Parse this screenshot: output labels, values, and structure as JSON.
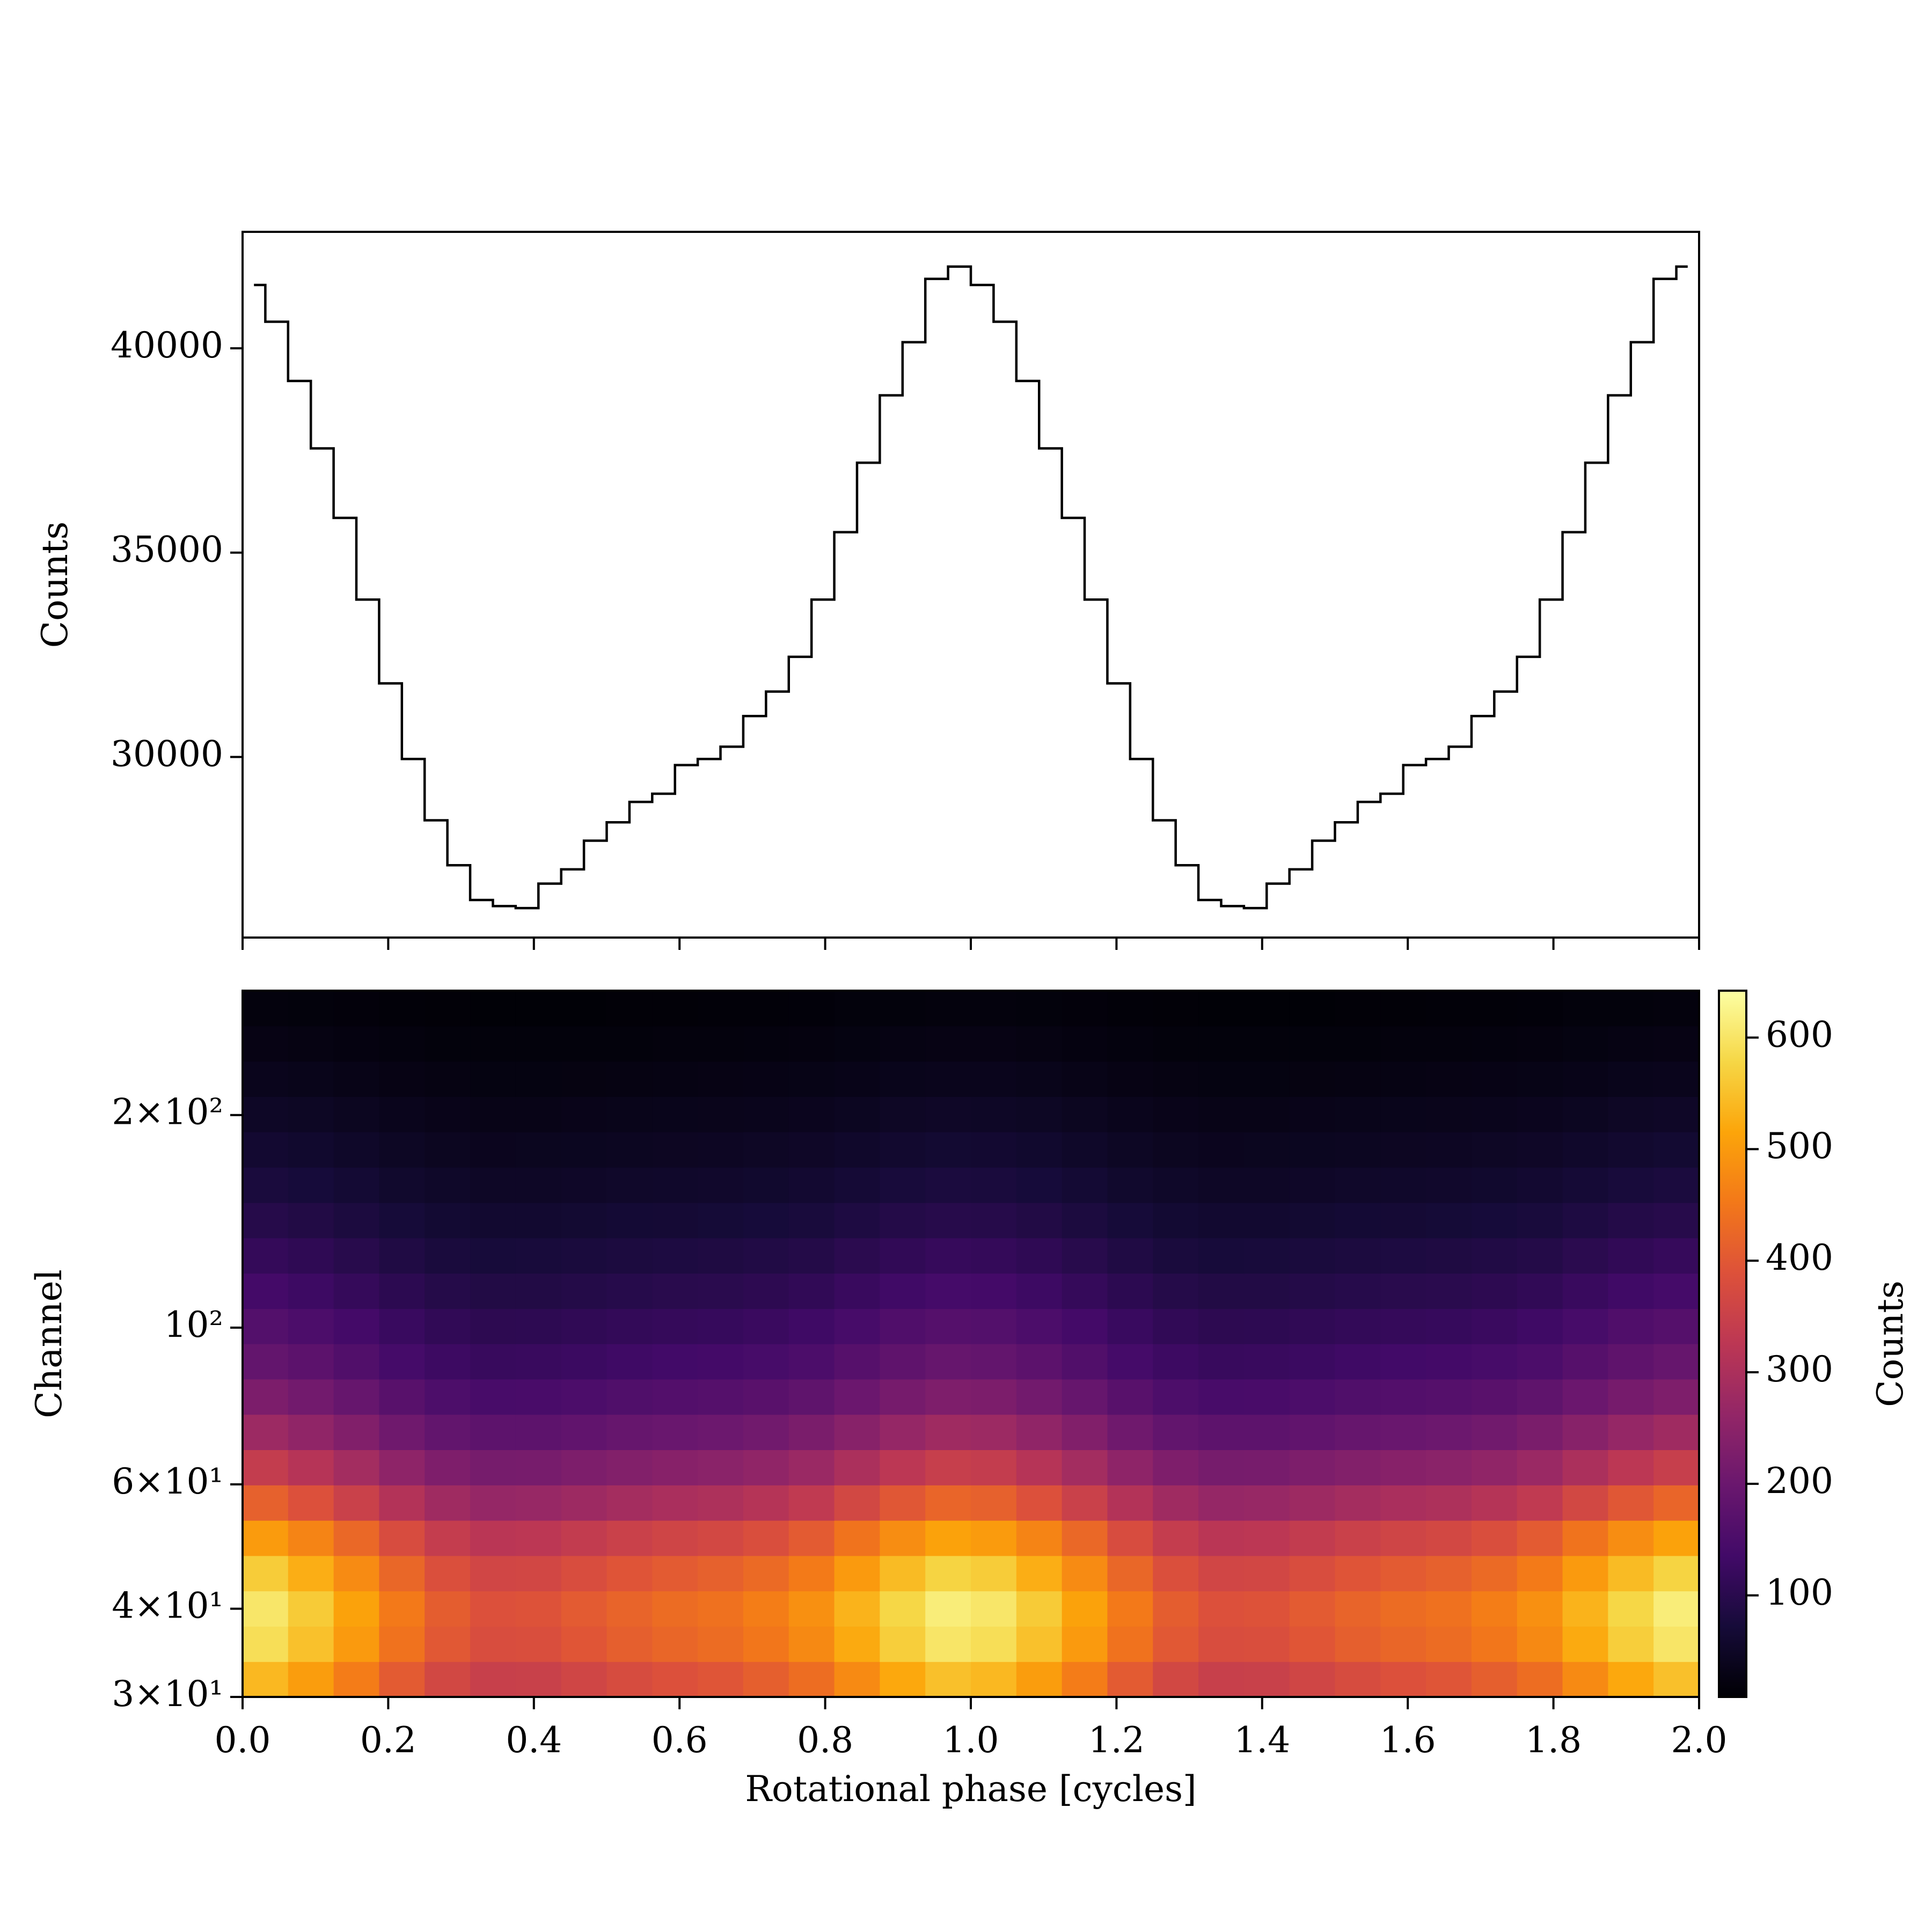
{
  "chart_data": [
    {
      "type": "step",
      "drawstyle": "steps-mid",
      "ylabel": "Counts",
      "color": "#000000",
      "x": [
        0.015625,
        0.046875,
        0.078125,
        0.109375,
        0.140625,
        0.171875,
        0.203125,
        0.234375,
        0.265625,
        0.296875,
        0.328125,
        0.359375,
        0.390625,
        0.421875,
        0.453125,
        0.484375,
        0.515625,
        0.546875,
        0.578125,
        0.609375,
        0.640625,
        0.671875,
        0.703125,
        0.734375,
        0.765625,
        0.796875,
        0.828125,
        0.859375,
        0.890625,
        0.921875,
        0.953125,
        0.984375,
        1.015625,
        1.046875,
        1.078125,
        1.109375,
        1.140625,
        1.171875,
        1.203125,
        1.234375,
        1.265625,
        1.296875,
        1.328125,
        1.359375,
        1.390625,
        1.421875,
        1.453125,
        1.484375,
        1.515625,
        1.546875,
        1.578125,
        1.609375,
        1.640625,
        1.671875,
        1.703125,
        1.734375,
        1.765625,
        1.796875,
        1.828125,
        1.859375,
        1.890625,
        1.921875,
        1.953125,
        1.984375
      ],
      "values": [
        41550,
        40650,
        39200,
        37550,
        35850,
        33850,
        31800,
        29950,
        28450,
        27350,
        26500,
        26350,
        26300,
        26900,
        27250,
        27950,
        28400,
        28900,
        29100,
        29800,
        29950,
        30250,
        31000,
        31600,
        32450,
        33850,
        35500,
        37200,
        38850,
        40150,
        41700,
        42000,
        41550,
        40650,
        39200,
        37550,
        35850,
        33850,
        31800,
        29950,
        28450,
        27350,
        26500,
        26350,
        26300,
        26900,
        27250,
        27950,
        28400,
        28900,
        29100,
        29800,
        29950,
        30250,
        31000,
        31600,
        32450,
        33850,
        35500,
        37200,
        38850,
        40150,
        41700,
        42000
      ],
      "xlim": [
        0,
        2
      ],
      "ylim": [
        25580,
        42850
      ],
      "yticks": [
        30000,
        35000,
        40000
      ]
    },
    {
      "type": "heatmap",
      "xlabel": "Rotational phase [cycles]",
      "ylabel": "Channel",
      "yscale": "log",
      "colormap": "inferno",
      "xedges": [
        0,
        0.0625,
        0.125,
        0.1875,
        0.25,
        0.3125,
        0.375,
        0.4375,
        0.5,
        0.5625,
        0.625,
        0.6875,
        0.75,
        0.8125,
        0.875,
        0.9375,
        1,
        1.0625,
        1.125,
        1.1875,
        1.25,
        1.3125,
        1.375,
        1.4375,
        1.5,
        1.5625,
        1.625,
        1.6875,
        1.75,
        1.8125,
        1.875,
        1.9375,
        2
      ],
      "yedges": [
        30,
        33.66,
        37.77,
        42.38,
        47.55,
        53.35,
        59.86,
        67.16,
        75.36,
        84.55,
        94.87,
        106.4,
        119.4,
        134.0,
        150.3,
        168.7,
        189.3,
        212.4,
        238.3,
        267.4,
        300
      ],
      "z": [
        [
          540,
          504,
          458,
          405,
          366,
          347,
          349,
          362,
          376,
          387,
          395,
          411,
          435,
          477,
          519,
          550,
          540,
          504,
          458,
          405,
          366,
          347,
          349,
          362,
          376,
          387,
          395,
          411,
          435,
          477,
          519,
          550
        ],
        [
          590,
          551,
          500,
          443,
          400,
          379,
          382,
          396,
          411,
          423,
          432,
          449,
          476,
          522,
          567,
          601,
          590,
          551,
          500,
          443,
          400,
          379,
          382,
          396,
          411,
          423,
          432,
          449,
          476,
          522,
          567,
          601
        ],
        [
          602,
          563,
          511,
          453,
          409,
          387,
          390,
          405,
          420,
          432,
          441,
          459,
          486,
          533,
          579,
          613,
          602,
          563,
          511,
          453,
          409,
          387,
          390,
          405,
          420,
          432,
          441,
          459,
          486,
          533,
          579,
          613
        ],
        [
          565,
          527,
          479,
          424,
          383,
          363,
          365,
          379,
          394,
          405,
          414,
          430,
          455,
          500,
          543,
          575,
          565,
          527,
          479,
          424,
          383,
          363,
          365,
          379,
          394,
          405,
          414,
          430,
          455,
          500,
          543,
          575
        ],
        [
          502,
          469,
          426,
          377,
          341,
          323,
          325,
          337,
          350,
          360,
          368,
          382,
          405,
          444,
          482,
          511,
          502,
          469,
          426,
          377,
          341,
          323,
          325,
          337,
          350,
          360,
          368,
          382,
          405,
          444,
          482,
          511
        ],
        [
          414,
          387,
          351,
          311,
          281,
          266,
          268,
          278,
          289,
          297,
          303,
          315,
          334,
          366,
          398,
          422,
          414,
          387,
          351,
          311,
          281,
          266,
          268,
          278,
          289,
          297,
          303,
          315,
          334,
          366,
          398,
          422
        ],
        [
          339,
          316,
          287,
          255,
          230,
          218,
          219,
          228,
          236,
          243,
          248,
          258,
          273,
          300,
          326,
          345,
          339,
          316,
          287,
          255,
          230,
          218,
          219,
          228,
          236,
          243,
          248,
          258,
          273,
          300,
          326,
          345
        ],
        [
          276,
          258,
          234,
          207,
          187,
          178,
          179,
          185,
          193,
          198,
          202,
          210,
          223,
          244,
          265,
          281,
          276,
          258,
          234,
          207,
          187,
          178,
          179,
          185,
          193,
          198,
          202,
          210,
          223,
          244,
          265,
          281
        ],
        [
          226,
          211,
          192,
          170,
          153,
          145,
          146,
          152,
          158,
          162,
          165,
          172,
          182,
          200,
          217,
          230,
          226,
          211,
          192,
          170,
          153,
          145,
          146,
          152,
          158,
          162,
          165,
          172,
          182,
          200,
          217,
          230
        ],
        [
          188,
          176,
          160,
          141,
          128,
          121,
          122,
          126,
          131,
          135,
          138,
          143,
          152,
          167,
          181,
          192,
          188,
          176,
          160,
          141,
          128,
          121,
          122,
          126,
          131,
          135,
          138,
          143,
          152,
          167,
          181,
          192
        ],
        [
          163,
          152,
          138,
          123,
          111,
          105,
          106,
          110,
          114,
          117,
          119,
          124,
          132,
          144,
          157,
          166,
          163,
          152,
          138,
          123,
          111,
          105,
          106,
          110,
          114,
          117,
          119,
          124,
          132,
          144,
          157,
          166
        ],
        [
          138,
          129,
          117,
          104,
          94,
          89,
          89,
          93,
          96,
          99,
          101,
          105,
          111,
          122,
          133,
          141,
          138,
          129,
          117,
          104,
          94,
          89,
          89,
          93,
          96,
          99,
          101,
          105,
          111,
          122,
          133,
          141
        ],
        [
          115,
          108,
          98,
          87,
          78,
          74,
          75,
          78,
          81,
          83,
          85,
          88,
          93,
          102,
          111,
          118,
          115,
          108,
          98,
          87,
          78,
          74,
          75,
          78,
          81,
          83,
          85,
          88,
          93,
          102,
          111,
          118
        ],
        [
          95,
          89,
          81,
          72,
          65,
          61,
          62,
          64,
          67,
          68,
          70,
          73,
          77,
          84,
          92,
          97,
          95,
          89,
          81,
          72,
          65,
          61,
          62,
          64,
          67,
          68,
          70,
          73,
          77,
          84,
          92,
          97
        ],
        [
          78,
          73,
          66,
          58,
          53,
          50,
          50,
          52,
          54,
          56,
          57,
          59,
          63,
          69,
          75,
          79,
          78,
          73,
          66,
          58,
          53,
          50,
          50,
          52,
          54,
          56,
          57,
          59,
          63,
          69,
          75,
          79
        ],
        [
          63,
          59,
          53,
          47,
          43,
          40,
          41,
          42,
          44,
          45,
          46,
          48,
          51,
          56,
          60,
          64,
          63,
          59,
          53,
          47,
          43,
          40,
          41,
          42,
          44,
          45,
          46,
          48,
          51,
          56,
          60,
          64
        ],
        [
          50,
          47,
          43,
          38,
          34,
          32,
          32,
          34,
          35,
          36,
          37,
          38,
          40,
          44,
          48,
          51,
          50,
          47,
          43,
          38,
          34,
          32,
          32,
          34,
          35,
          36,
          37,
          38,
          40,
          44,
          48,
          51
        ],
        [
          38,
          35,
          32,
          28,
          26,
          24,
          24,
          25,
          26,
          27,
          28,
          29,
          30,
          33,
          36,
          38,
          38,
          35,
          32,
          28,
          26,
          24,
          24,
          25,
          26,
          27,
          28,
          29,
          30,
          33,
          36,
          38
        ],
        [
          28,
          26,
          23,
          21,
          19,
          18,
          18,
          19,
          19,
          20,
          20,
          21,
          22,
          24,
          27,
          28,
          28,
          26,
          23,
          21,
          19,
          18,
          18,
          19,
          19,
          20,
          20,
          21,
          22,
          24,
          27,
          28
        ],
        [
          20,
          19,
          17,
          15,
          14,
          13,
          13,
          13,
          14,
          14,
          15,
          15,
          16,
          18,
          19,
          20,
          20,
          19,
          17,
          15,
          14,
          13,
          13,
          13,
          14,
          14,
          15,
          15,
          16,
          18,
          19,
          20
        ]
      ],
      "xlim": [
        0,
        2
      ],
      "ylim": [
        30,
        300
      ],
      "xticks": [
        {
          "value": 0,
          "label": "0.0"
        },
        0.2,
        0.4,
        0.6,
        0.8,
        {
          "value": 1,
          "label": "1.0"
        },
        1.2,
        1.4,
        1.6,
        1.8,
        {
          "value": 2,
          "label": "2.0"
        }
      ],
      "yticks": [
        {
          "value": 30,
          "label": "3×10¹"
        },
        {
          "value": 40,
          "label": "4×10¹"
        },
        {
          "value": 60,
          "label": "6×10¹"
        },
        {
          "value": 100,
          "label": "10²"
        },
        {
          "value": 200,
          "label": "2×10²"
        }
      ],
      "clim": [
        9,
        642
      ],
      "colorbar_label": "Counts",
      "colorbar_ticks": [
        100,
        200,
        300,
        400,
        500,
        600
      ]
    }
  ]
}
